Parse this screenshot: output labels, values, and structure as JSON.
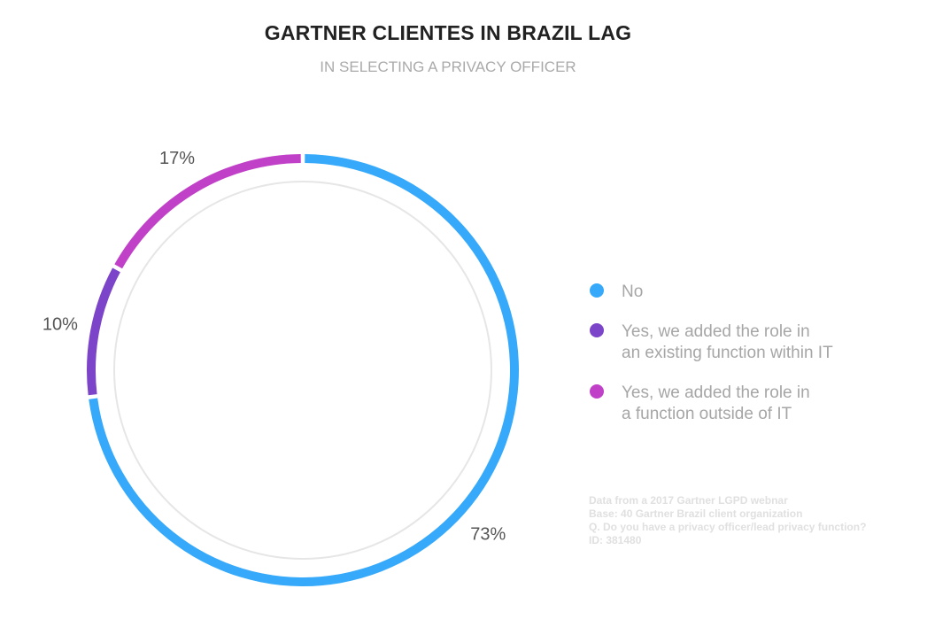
{
  "title": "GARTNER CLIENTES IN BRAZIL LAG",
  "subtitle": "IN SELECTING A PRIVACY OFFICER",
  "chart_data": {
    "type": "pie",
    "style": "donut-ring",
    "slices": [
      {
        "label": "No",
        "value": 73,
        "display": "73%",
        "color": "#36a9fa"
      },
      {
        "label": "Yes, we added the role in\nan existing function within IT",
        "value": 10,
        "display": "10%",
        "color": "#7b44c9"
      },
      {
        "label": "Yes, we added the role in\na function outside of IT",
        "value": 17,
        "display": "17%",
        "color": "#c041c8"
      }
    ],
    "start": "top",
    "direction": "clockwise",
    "legend_position": "right",
    "inner_ring_color": "#e6e6e6"
  },
  "notes": [
    "Data from a 2017 Gartner LGPD webnar",
    "Base: 40 Gartner Brazil client organization",
    "Q. Do you have a privacy officer/lead privacy function?",
    "ID: 381480"
  ]
}
